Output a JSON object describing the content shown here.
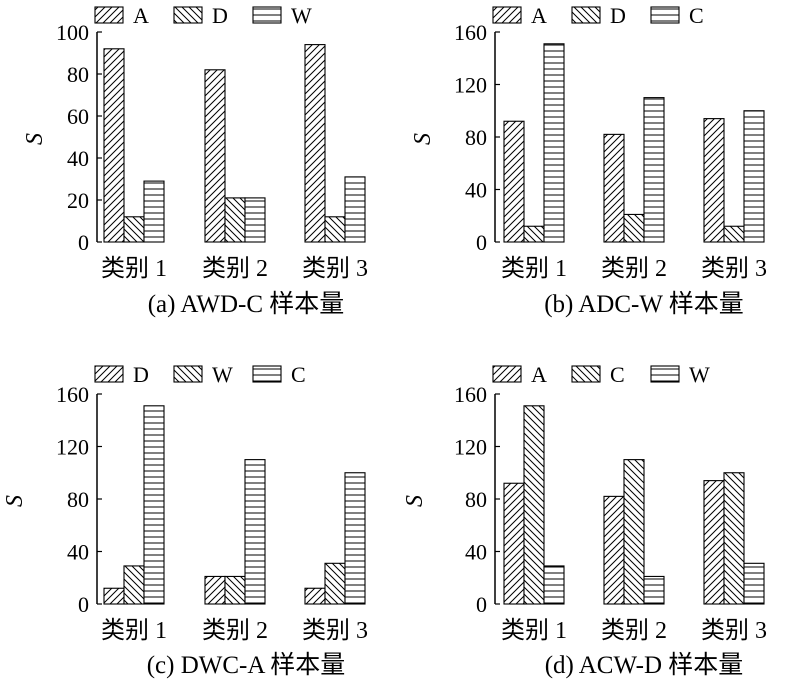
{
  "chart_data": [
    {
      "type": "bar",
      "caption": "(a) AWD-C 样本量",
      "ylabel": "S",
      "xlabel": "",
      "categories": [
        "类别 1",
        "类别 2",
        "类别 3"
      ],
      "ylim": [
        0,
        100
      ],
      "yticks": [
        "0",
        "20",
        "40",
        "60",
        "80",
        "100"
      ],
      "legend_position": "top",
      "grid": false,
      "series": [
        {
          "name": "A",
          "pattern": "diag-up",
          "values": [
            92,
            82,
            94
          ]
        },
        {
          "name": "D",
          "pattern": "diag-down",
          "values": [
            12,
            21,
            12
          ]
        },
        {
          "name": "W",
          "pattern": "horizontal",
          "values": [
            29,
            21,
            31
          ]
        }
      ]
    },
    {
      "type": "bar",
      "caption": "(b) ADC-W 样本量",
      "ylabel": "S",
      "xlabel": "",
      "categories": [
        "类别 1",
        "类别 2",
        "类别 3"
      ],
      "ylim": [
        0,
        160
      ],
      "yticks": [
        "0",
        "40",
        "80",
        "120",
        "160"
      ],
      "legend_position": "top",
      "grid": false,
      "series": [
        {
          "name": "A",
          "pattern": "diag-up",
          "values": [
            92,
            82,
            94
          ]
        },
        {
          "name": "D",
          "pattern": "diag-down",
          "values": [
            12,
            21,
            12
          ]
        },
        {
          "name": "C",
          "pattern": "horizontal",
          "values": [
            151,
            110,
            100
          ]
        }
      ]
    },
    {
      "type": "bar",
      "caption": "(c) DWC-A 样本量",
      "ylabel": "S",
      "xlabel": "",
      "categories": [
        "类别 1",
        "类别 2",
        "类别 3"
      ],
      "ylim": [
        0,
        160
      ],
      "yticks": [
        "0",
        "40",
        "80",
        "120",
        "160"
      ],
      "legend_position": "top",
      "grid": false,
      "series": [
        {
          "name": "D",
          "pattern": "diag-up",
          "values": [
            12,
            21,
            12
          ]
        },
        {
          "name": "W",
          "pattern": "diag-down",
          "values": [
            29,
            21,
            31
          ]
        },
        {
          "name": "C",
          "pattern": "horizontal",
          "values": [
            151,
            110,
            100
          ]
        }
      ]
    },
    {
      "type": "bar",
      "caption": "(d) ACW-D 样本量",
      "ylabel": "S",
      "xlabel": "",
      "categories": [
        "类别 1",
        "类别 2",
        "类别 3"
      ],
      "ylim": [
        0,
        160
      ],
      "yticks": [
        "0",
        "40",
        "80",
        "120",
        "160"
      ],
      "legend_position": "top",
      "grid": false,
      "series": [
        {
          "name": "A",
          "pattern": "diag-up",
          "values": [
            92,
            82,
            94
          ]
        },
        {
          "name": "C",
          "pattern": "diag-down",
          "values": [
            151,
            110,
            100
          ]
        },
        {
          "name": "W",
          "pattern": "horizontal",
          "values": [
            29,
            21,
            31
          ]
        }
      ]
    }
  ]
}
